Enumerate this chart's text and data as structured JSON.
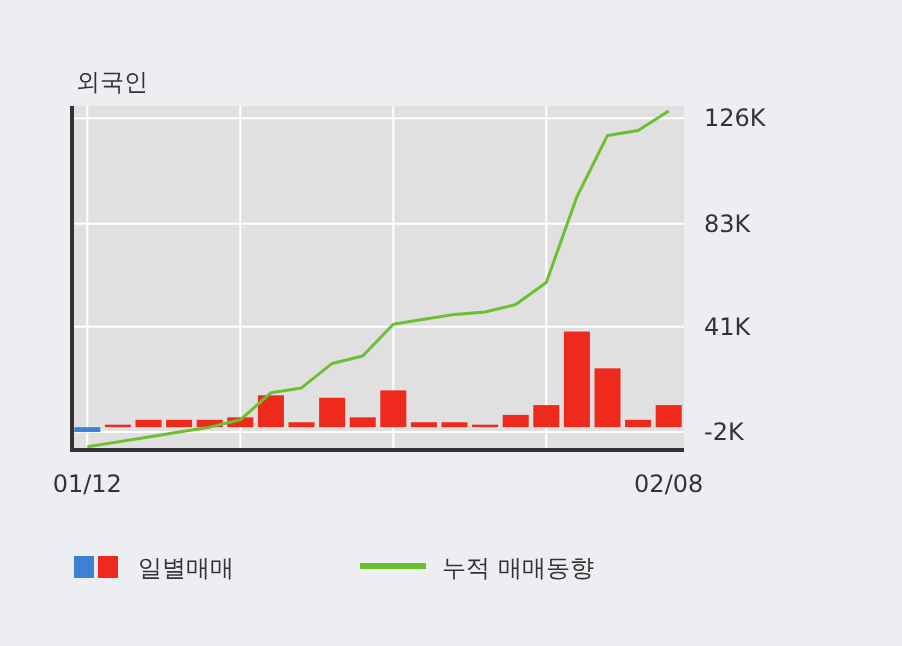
{
  "chart_data": {
    "type": "bar",
    "title": "외국인",
    "categories": [
      "01/12",
      null,
      null,
      null,
      null,
      null,
      null,
      null,
      null,
      null,
      null,
      null,
      null,
      null,
      null,
      null,
      null,
      null,
      null,
      "02/08"
    ],
    "series": [
      {
        "name": "일별매매",
        "colors": [
          "#3f7fd8",
          "#ee2a1c",
          "#ee2a1c",
          "#ee2a1c",
          "#ee2a1c",
          "#ee2a1c",
          "#ee2a1c",
          "#ee2a1c",
          "#ee2a1c",
          "#ee2a1c",
          "#ee2a1c",
          "#ee2a1c",
          "#ee2a1c",
          "#ee2a1c",
          "#ee2a1c",
          "#ee2a1c",
          "#ee2a1c",
          "#ee2a1c",
          "#ee2a1c",
          "#ee2a1c"
        ],
        "values": [
          -2,
          1,
          3,
          3,
          3,
          4,
          13,
          2,
          12,
          4,
          15,
          2,
          2,
          1,
          5,
          9,
          39,
          24,
          3,
          9
        ]
      },
      {
        "name": "누적 매매동향",
        "type": "line",
        "color": "#6cbf2e",
        "values": [
          -8,
          -6,
          -4,
          -2,
          0,
          3,
          14,
          16,
          26,
          29,
          42,
          44,
          46,
          47,
          50,
          59,
          94,
          119,
          121,
          129
        ]
      }
    ],
    "ylim": [
      -8.5,
      131
    ],
    "yticks": [
      {
        "value": -2,
        "label": "-2K"
      },
      {
        "value": 41,
        "label": "41K"
      },
      {
        "value": 83,
        "label": "83K"
      },
      {
        "value": 126,
        "label": "126K"
      }
    ],
    "grid": true,
    "legend": "bottom"
  }
}
